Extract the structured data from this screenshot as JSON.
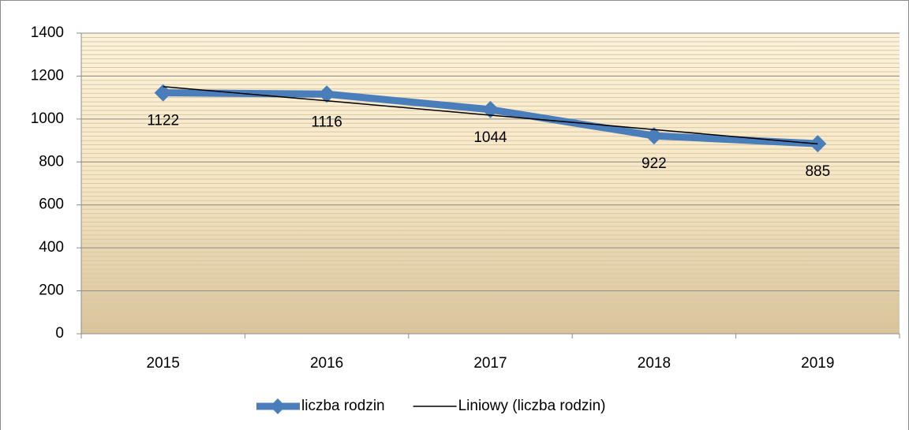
{
  "chart_data": {
    "type": "line",
    "categories": [
      "2015",
      "2016",
      "2017",
      "2018",
      "2019"
    ],
    "series": [
      {
        "name": "liczba rodzin",
        "color": "#4a7ebb",
        "values": [
          1122,
          1116,
          1044,
          922,
          885
        ],
        "marker": "diamond",
        "data_labels": true
      },
      {
        "name": "Liniowy (liczba rodzin)",
        "color": "#000000",
        "values": [
          1151,
          1085,
          1018,
          951,
          884
        ],
        "marker": "none",
        "data_labels": false
      }
    ],
    "ylim": [
      0,
      1400
    ],
    "yticks": [
      0,
      200,
      400,
      600,
      800,
      1000,
      1200,
      1400
    ],
    "grid": true,
    "minor_grid_step": 20,
    "legend": "bottom"
  }
}
